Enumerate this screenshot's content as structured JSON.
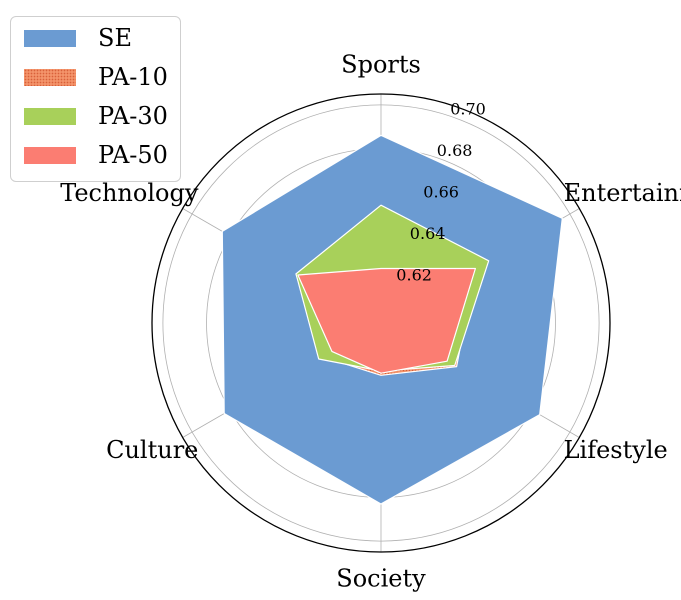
{
  "chart_data": {
    "type": "radar",
    "categories": [
      "Sports",
      "Entertainment",
      "Lifestyle",
      "Society",
      "Culture",
      "Technology"
    ],
    "r_ticks": [
      0.62,
      0.64,
      0.66,
      0.68,
      0.7
    ],
    "r_tick_labels": [
      "0.62",
      "0.64",
      "0.66",
      "0.68",
      "0.70"
    ],
    "rlim": [
      0.6,
      0.705
    ],
    "grid": true,
    "legend_position": "top-left",
    "series": [
      {
        "name": "SE",
        "color": "#6b9bd2",
        "values": [
          0.686,
          0.696,
          0.684,
          0.683,
          0.683,
          0.684
        ]
      },
      {
        "name": "PA-10",
        "color": "#f0845c",
        "pattern": "dotted",
        "values": [
          0.625,
          0.65,
          0.64,
          0.624,
          0.631,
          0.645
        ]
      },
      {
        "name": "PA-30",
        "color": "#a8d05a",
        "values": [
          0.654,
          0.657,
          0.639,
          0.622,
          0.633,
          0.645
        ]
      },
      {
        "name": "PA-50",
        "color": "#fb7d72",
        "values": [
          0.625,
          0.65,
          0.635,
          0.623,
          0.626,
          0.644
        ]
      }
    ]
  }
}
